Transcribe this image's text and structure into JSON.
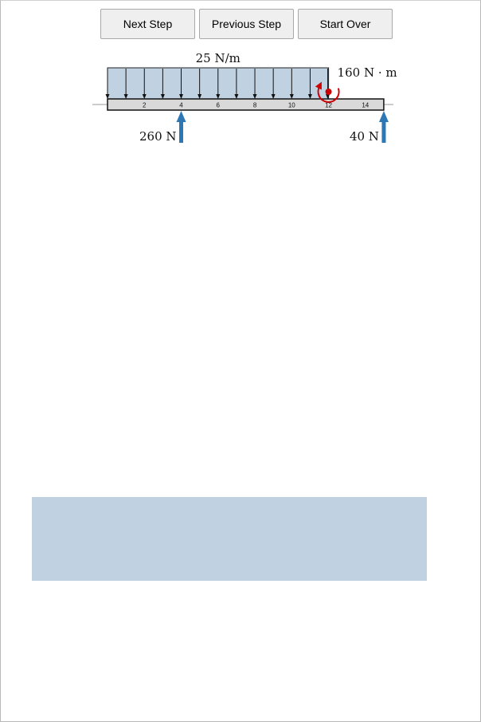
{
  "controls": {
    "next_label": "Next Step",
    "previous_label": "Previous Step",
    "start_over_label": "Start Over"
  },
  "diagram": {
    "beam_length": 15,
    "tick_values": [
      2,
      4,
      6,
      8,
      10,
      12,
      14
    ],
    "distributed_load": {
      "label": "25 N/m",
      "from": 0,
      "to": 12,
      "color": "#c0d1e1"
    },
    "moment": {
      "label": "160 N · m",
      "at": 12,
      "direction": "counterclockwise",
      "color": "#cc0000"
    },
    "reactions": [
      {
        "at": 4,
        "label": "260 N",
        "color": "#2e77b5"
      },
      {
        "at": 15,
        "label": "40 N",
        "color": "#2e77b5"
      }
    ]
  },
  "colors": {
    "arrow_blue": "#2e77b5",
    "moment_red": "#cc0000",
    "load_fill": "#c0d1e1",
    "panel_fill": "#c0d1e1",
    "beam_fill": "#d9d9d9"
  }
}
